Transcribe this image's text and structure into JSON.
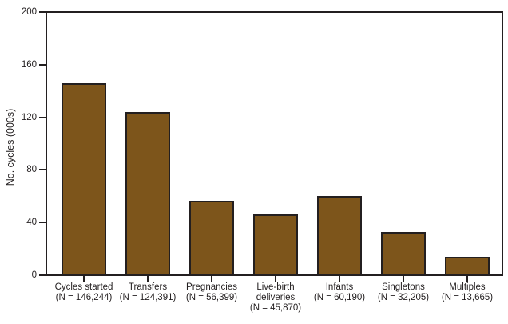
{
  "figure": {
    "background": "#FFFFFF"
  },
  "chart_data": {
    "type": "bar",
    "title": "",
    "xlabel": "",
    "ylabel": "No. cycles (000s)",
    "ylim": [
      0,
      200
    ],
    "yticks": [
      0,
      40,
      80,
      120,
      160,
      200
    ],
    "grid": "off",
    "legend": "none",
    "frame": "full-box",
    "bar_color": "#7D551B",
    "bar_border_color": "#231F20",
    "axis_color": "#231F20",
    "text_color": "#231F20",
    "categories": [
      "Cycles started",
      "Transfers",
      "Pregnancies",
      "Live-birth deliveries",
      "Infants",
      "Singletons",
      "Multiples"
    ],
    "values": [
      146.244,
      124.391,
      56.399,
      45.87,
      60.19,
      32.205,
      13.665
    ],
    "n_labels": [
      "(N = 146,244)",
      "(N = 124,391)",
      "(N = 56,399)",
      "(N = 45,870)",
      "(N = 60,190)",
      "(N = 32,205)",
      "(N = 13,665)"
    ],
    "category_label_lines": [
      [
        "Cycles started",
        "(N = 146,244)"
      ],
      [
        "Transfers",
        "(N = 124,391)"
      ],
      [
        "Pregnancies",
        "(N = 56,399)"
      ],
      [
        "Live-birth",
        "deliveries",
        "(N = 45,870)"
      ],
      [
        "Infants",
        "(N = 60,190)"
      ],
      [
        "Singletons",
        "(N = 32,205)"
      ],
      [
        "Multiples",
        "(N = 13,665)"
      ]
    ]
  }
}
